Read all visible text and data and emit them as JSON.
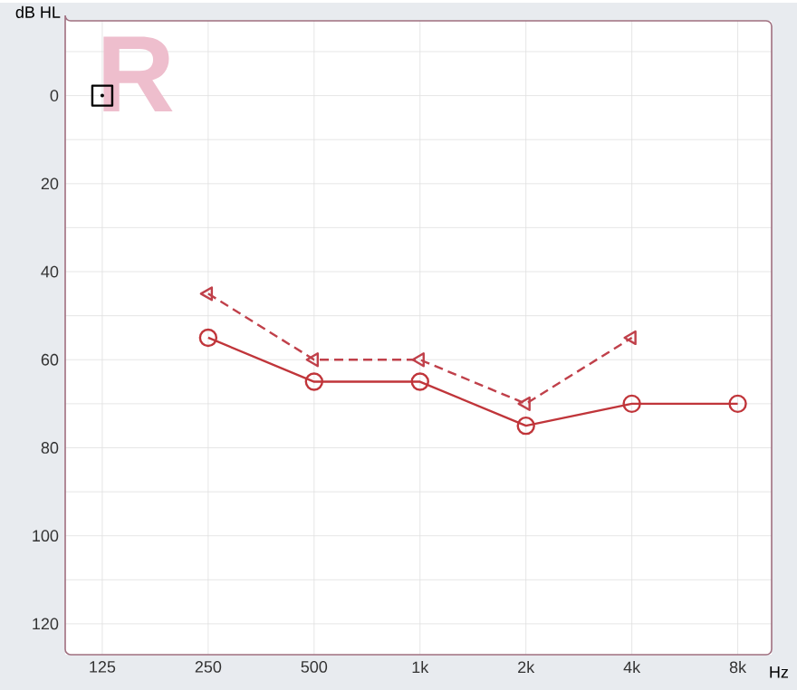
{
  "chart_data": {
    "type": "line",
    "xlabel": "Hz",
    "ylabel": "dB HL",
    "categories": [
      "125",
      "250",
      "500",
      "1k",
      "2k",
      "4k",
      "8k"
    ],
    "ylim": [
      127,
      -17
    ],
    "yticks": [
      {
        "value": -10,
        "label": null
      },
      0,
      {
        "value": 10,
        "label": null
      },
      20,
      {
        "value": 30,
        "label": null
      },
      40,
      {
        "value": 50,
        "label": null
      },
      60,
      {
        "value": 70,
        "label": null
      },
      80,
      {
        "value": 90,
        "label": null
      },
      100,
      {
        "value": 110,
        "label": null
      },
      120
    ],
    "grid": true,
    "annotations": [
      "R"
    ],
    "series": [
      {
        "color": "#c0353a",
        "marker": "circle",
        "line_style": "solid",
        "values": [
          null,
          55,
          65,
          65,
          75,
          70,
          70
        ]
      },
      {
        "color": "#c0404a",
        "marker": "triangle",
        "line_style": "dashed",
        "values": [
          null,
          45,
          60,
          60,
          70,
          55,
          null
        ]
      },
      {
        "type": "scatter",
        "color": "#000000",
        "marker": "square",
        "values": [
          0,
          null,
          null,
          null,
          null,
          null,
          null
        ]
      }
    ]
  }
}
